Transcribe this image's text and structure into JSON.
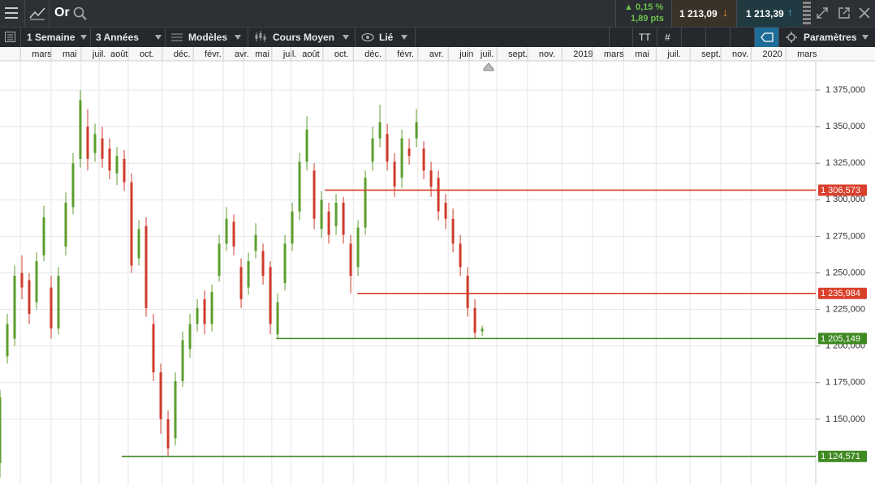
{
  "toolbar": {
    "instrument": "Or",
    "change_pct": "0,15 %",
    "change_pts": "1,89 pts",
    "sell": "1 213,09",
    "buy": "1 213,39",
    "period": "1 Semaine",
    "range": "3 Années",
    "models": "Modèles",
    "price_type": "Cours Moyen",
    "link": "Lié",
    "settings": "Paramètres"
  },
  "chart_data": {
    "type": "candlestick",
    "x": [
      0,
      2,
      4,
      6,
      8,
      10,
      12,
      14,
      16,
      18,
      20,
      22,
      24,
      26,
      28,
      30,
      32,
      34,
      36,
      38,
      40,
      42,
      44,
      46,
      48,
      50,
      52,
      54,
      56,
      58,
      60,
      62,
      64,
      66,
      68,
      70,
      72,
      74,
      76,
      78,
      80,
      82,
      84,
      86,
      88,
      90,
      92,
      94,
      96,
      98,
      100,
      102,
      104,
      106,
      108,
      110,
      112,
      114,
      116,
      118,
      120,
      122,
      124,
      126,
      128,
      130,
      132
    ],
    "open": [
      1120,
      1193,
      1205,
      1250,
      1245,
      1230,
      1262,
      1240,
      1212,
      1268,
      1295,
      1328,
      1350,
      1332,
      1342,
      1335,
      1318,
      1328,
      1312,
      1260,
      1282,
      1215,
      1182,
      1150,
      1137,
      1176,
      1198,
      1215,
      1232,
      1215,
      1248,
      1270,
      1285,
      1254,
      1240,
      1265,
      1265,
      1254,
      1208,
      1243,
      1270,
      1292,
      1326,
      1320,
      1280,
      1292,
      1282,
      1298,
      1270,
      1254,
      1281,
      1326,
      1342,
      1345,
      1326,
      1315,
      1335,
      1342,
      1335,
      1320,
      1315,
      1298,
      1287,
      1270,
      1248,
      1226,
      1210
    ],
    "high": [
      1170,
      1222,
      1255,
      1262,
      1250,
      1264,
      1296,
      1248,
      1254,
      1305,
      1332,
      1375,
      1362,
      1352,
      1350,
      1342,
      1336,
      1334,
      1318,
      1286,
      1288,
      1222,
      1188,
      1156,
      1182,
      1210,
      1222,
      1232,
      1238,
      1242,
      1276,
      1295,
      1290,
      1260,
      1264,
      1284,
      1270,
      1258,
      1236,
      1276,
      1298,
      1332,
      1357,
      1325,
      1306,
      1298,
      1304,
      1302,
      1276,
      1286,
      1320,
      1350,
      1365,
      1352,
      1332,
      1348,
      1342,
      1362,
      1340,
      1326,
      1320,
      1304,
      1294,
      1276,
      1254,
      1232,
      1214
    ],
    "low": [
      1110,
      1188,
      1200,
      1232,
      1215,
      1225,
      1258,
      1205,
      1208,
      1262,
      1290,
      1322,
      1320,
      1326,
      1322,
      1314,
      1310,
      1306,
      1250,
      1255,
      1220,
      1176,
      1140,
      1124.6,
      1132,
      1172,
      1192,
      1210,
      1208,
      1210,
      1244,
      1265,
      1262,
      1226,
      1235,
      1260,
      1242,
      1208,
      1205.1,
      1238,
      1265,
      1286,
      1320,
      1280,
      1274,
      1270,
      1276,
      1270,
      1236,
      1248,
      1276,
      1320,
      1336,
      1320,
      1302,
      1308,
      1324,
      1336,
      1314,
      1302,
      1286,
      1280,
      1264,
      1248,
      1220,
      1205.2,
      1207
    ],
    "close": [
      1165,
      1215,
      1248,
      1240,
      1222,
      1258,
      1288,
      1212,
      1248,
      1298,
      1325,
      1368,
      1328,
      1345,
      1328,
      1320,
      1330,
      1312,
      1255,
      1280,
      1226,
      1182,
      1150,
      1130,
      1176,
      1204,
      1215,
      1226,
      1215,
      1237,
      1270,
      1287,
      1268,
      1232,
      1258,
      1276,
      1248,
      1215,
      1230,
      1270,
      1292,
      1326,
      1348,
      1287,
      1300,
      1276,
      1298,
      1276,
      1248,
      1281,
      1315,
      1342,
      1353,
      1326,
      1309,
      1342,
      1330,
      1353,
      1320,
      1309,
      1292,
      1287,
      1270,
      1254,
      1226,
      1209,
      1212
    ],
    "up_color": "#5c9e2e",
    "down_color": "#cf3b2b",
    "xlim": [
      0,
      223.3
    ],
    "xticks": [
      {
        "value": 5.6,
        "label": "mars"
      },
      {
        "value": 14,
        "label": "mai"
      },
      {
        "value": 22.2,
        "label": "juil."
      },
      {
        "value": 27.1,
        "label": "août"
      },
      {
        "value": 35.1,
        "label": "oct."
      },
      {
        "value": 44.4,
        "label": "déc."
      },
      {
        "value": 52.9,
        "label": "févr."
      },
      {
        "value": 61.1,
        "label": "avr."
      },
      {
        "value": 66.7,
        "label": "mai"
      },
      {
        "value": 74.4,
        "label": "juil."
      },
      {
        "value": 79.6,
        "label": "août"
      },
      {
        "value": 88.4,
        "label": "oct."
      },
      {
        "value": 96.7,
        "label": "déc."
      },
      {
        "value": 105.6,
        "label": "févr."
      },
      {
        "value": 114.4,
        "label": "avr."
      },
      {
        "value": 122.7,
        "label": "juin"
      },
      {
        "value": 128.4,
        "label": "juil."
      },
      {
        "value": 136,
        "label": "sept."
      },
      {
        "value": 144.4,
        "label": "nov."
      },
      {
        "value": 153.8,
        "label": "2019"
      },
      {
        "value": 162.2,
        "label": "mars"
      },
      {
        "value": 170.7,
        "label": "mai"
      },
      {
        "value": 179.6,
        "label": "juil."
      },
      {
        "value": 188.9,
        "label": "sept."
      },
      {
        "value": 197.3,
        "label": "nov."
      },
      {
        "value": 205.6,
        "label": "2020"
      },
      {
        "value": 215.1,
        "label": "mars"
      }
    ],
    "ylim": [
      1105,
      1395
    ],
    "yticks": [
      {
        "value": 1150,
        "label": "1 150,000"
      },
      {
        "value": 1175,
        "label": "1 175,000"
      },
      {
        "value": 1200,
        "label": "1 200,000"
      },
      {
        "value": 1225,
        "label": "1 225,000"
      },
      {
        "value": 1250,
        "label": "1 250,000"
      },
      {
        "value": 1275,
        "label": "1 275,000"
      },
      {
        "value": 1300,
        "label": "1 300,000"
      },
      {
        "value": 1325,
        "label": "1 325,000"
      },
      {
        "value": 1350,
        "label": "1 350,000"
      },
      {
        "value": 1375,
        "label": "1 375,000"
      }
    ],
    "grid": true,
    "levels": [
      {
        "value": 1306.573,
        "label": "1 306,573",
        "from": 88.9,
        "color": "#d9402c"
      },
      {
        "value": 1235.984,
        "label": "1 235,984",
        "from": 97.8,
        "color": "#d9402c"
      },
      {
        "value": 1205.149,
        "label": "1 205,149",
        "from": 75.6,
        "color": "#3f8a22"
      },
      {
        "value": 1124.571,
        "label": "1 124,571",
        "from": 33.3,
        "color": "#3f8a22"
      }
    ]
  }
}
